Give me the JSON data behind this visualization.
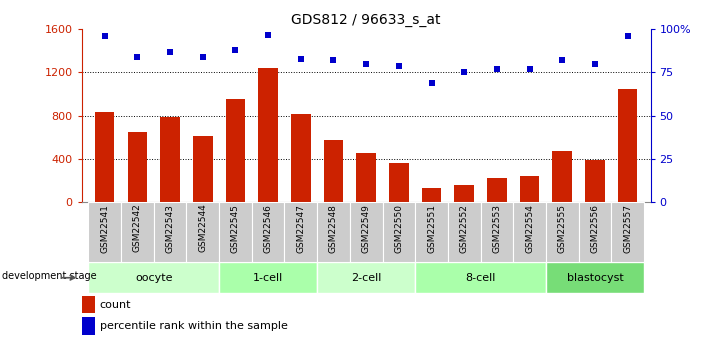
{
  "title": "GDS812 / 96633_s_at",
  "samples": [
    "GSM22541",
    "GSM22542",
    "GSM22543",
    "GSM22544",
    "GSM22545",
    "GSM22546",
    "GSM22547",
    "GSM22548",
    "GSM22549",
    "GSM22550",
    "GSM22551",
    "GSM22552",
    "GSM22553",
    "GSM22554",
    "GSM22555",
    "GSM22556",
    "GSM22557"
  ],
  "counts": [
    830,
    650,
    790,
    610,
    950,
    1240,
    810,
    570,
    450,
    360,
    130,
    160,
    220,
    240,
    470,
    390,
    1050
  ],
  "percentiles": [
    96,
    84,
    87,
    84,
    88,
    97,
    83,
    82,
    80,
    79,
    69,
    75,
    77,
    77,
    82,
    80,
    96
  ],
  "bar_color": "#cc2200",
  "dot_color": "#0000cc",
  "ylim_left": [
    0,
    1600
  ],
  "ylim_right": [
    0,
    100
  ],
  "yticks_left": [
    0,
    400,
    800,
    1200,
    1600
  ],
  "yticks_right": [
    0,
    25,
    50,
    75,
    100
  ],
  "ytick_labels_right": [
    "0",
    "25",
    "50",
    "75",
    "100%"
  ],
  "grid_values": [
    400,
    800,
    1200
  ],
  "stages": [
    {
      "label": "oocyte",
      "start": 0,
      "end": 3,
      "color": "#ccffcc"
    },
    {
      "label": "1-cell",
      "start": 4,
      "end": 6,
      "color": "#aaffaa"
    },
    {
      "label": "2-cell",
      "start": 7,
      "end": 9,
      "color": "#ccffcc"
    },
    {
      "label": "8-cell",
      "start": 10,
      "end": 13,
      "color": "#aaffaa"
    },
    {
      "label": "blastocyst",
      "start": 14,
      "end": 16,
      "color": "#77dd77"
    }
  ],
  "bar_width": 0.6,
  "legend_items": [
    {
      "label": "count",
      "color": "#cc2200"
    },
    {
      "label": "percentile rank within the sample",
      "color": "#0000cc"
    }
  ],
  "development_stage_label": "development stage",
  "tick_color_left": "#cc2200",
  "tick_color_right": "#0000cc",
  "tick_label_bg": "#bbbbbb"
}
